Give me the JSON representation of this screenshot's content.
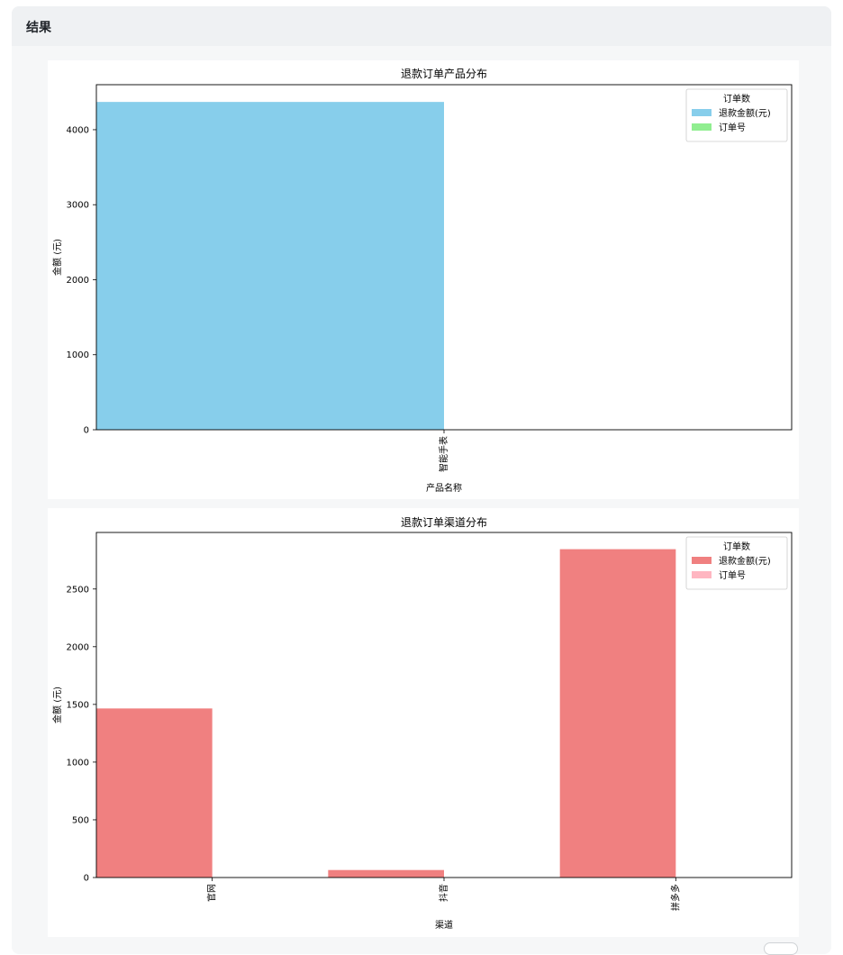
{
  "panel": {
    "title": "结果"
  },
  "chart_data": [
    {
      "type": "bar",
      "title": "退款订单产品分布",
      "xlabel": "产品名称",
      "ylabel": "金额 (元)",
      "categories": [
        "智能手表"
      ],
      "series": [
        {
          "name": "退款金额(元)",
          "values": [
            4370
          ],
          "color": "#87ceeb"
        },
        {
          "name": "订单号",
          "values": [
            0
          ],
          "color": "#90ee90"
        }
      ],
      "ylim": [
        0,
        4600
      ],
      "yticks": [
        0,
        1000,
        2000,
        3000,
        4000
      ],
      "legend": {
        "title": "订单数",
        "position": "top-right"
      },
      "grid": false
    },
    {
      "type": "bar",
      "title": "退款订单渠道分布",
      "xlabel": "渠道",
      "ylabel": "金额 (元)",
      "categories": [
        "官网",
        "抖音",
        "拼多多"
      ],
      "series": [
        {
          "name": "退款金额(元)",
          "values": [
            1465,
            65,
            2845
          ],
          "color": "#f08080"
        },
        {
          "name": "订单号",
          "values": [
            0,
            0,
            0
          ],
          "color": "#ffb6c1"
        }
      ],
      "ylim": [
        0,
        2990
      ],
      "yticks": [
        0,
        500,
        1000,
        1500,
        2000,
        2500
      ],
      "legend": {
        "title": "订单数",
        "position": "top-right"
      },
      "grid": false
    }
  ]
}
